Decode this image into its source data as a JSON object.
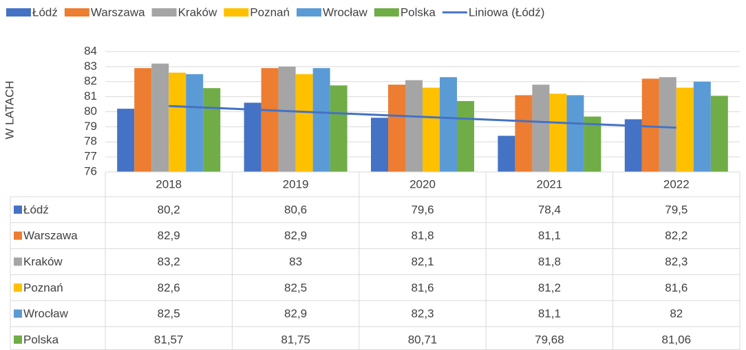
{
  "chart_data": {
    "type": "bar",
    "y_label": "W LATACH",
    "categories": [
      "2018",
      "2019",
      "2020",
      "2021",
      "2022"
    ],
    "series": [
      {
        "name": "Łódź",
        "color": "#4472c4",
        "values": [
          80.2,
          80.6,
          79.6,
          78.4,
          79.5
        ],
        "value_labels": [
          "80,2",
          "80,6",
          "79,6",
          "78,4",
          "79,5"
        ]
      },
      {
        "name": "Warszawa",
        "color": "#ed7d31",
        "values": [
          82.9,
          82.9,
          81.8,
          81.1,
          82.2
        ],
        "value_labels": [
          "82,9",
          "82,9",
          "81,8",
          "81,1",
          "82,2"
        ]
      },
      {
        "name": "Kraków",
        "color": "#a5a5a5",
        "values": [
          83.2,
          83,
          82.1,
          81.8,
          82.3
        ],
        "value_labels": [
          "83,2",
          "83",
          "82,1",
          "81,8",
          "82,3"
        ]
      },
      {
        "name": "Poznań",
        "color": "#ffc000",
        "values": [
          82.6,
          82.5,
          81.6,
          81.2,
          81.6
        ],
        "value_labels": [
          "82,6",
          "82,5",
          "81,6",
          "81,2",
          "81,6"
        ]
      },
      {
        "name": "Wrocław",
        "color": "#5b9bd5",
        "values": [
          82.5,
          82.9,
          82.3,
          81.1,
          82
        ],
        "value_labels": [
          "82,5",
          "82,9",
          "82,3",
          "81,1",
          "82"
        ]
      },
      {
        "name": "Polska",
        "color": "#70ad47",
        "values": [
          81.57,
          81.75,
          80.71,
          79.68,
          81.06
        ],
        "value_labels": [
          "81,57",
          "81,75",
          "80,71",
          "79,68",
          "81,06"
        ]
      }
    ],
    "trendline": {
      "name": "Liniowa (Łódź)",
      "color": "#4472c4",
      "values": [
        80.38,
        78.94
      ]
    },
    "ylim": [
      76,
      84
    ],
    "yticks": [
      76,
      77,
      78,
      79,
      80,
      81,
      82,
      83,
      84
    ],
    "grid": true
  }
}
